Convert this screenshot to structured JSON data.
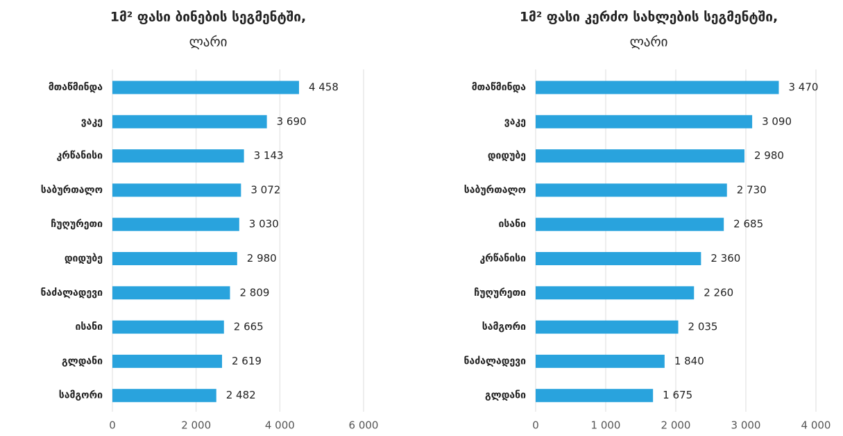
{
  "chart_data": [
    {
      "type": "bar",
      "orientation": "horizontal",
      "title": "1მ² ფასი ბინების სეგმენტში,",
      "subtitle": "ლარი",
      "categories": [
        "მთაწმინდა",
        "ვაკე",
        "კრწანისი",
        "საბურთალო",
        "ჩუღურეთი",
        "დიდუბე",
        "ნაძალადევი",
        "ისანი",
        "გლდანი",
        "სამგორი"
      ],
      "values": [
        4458,
        3690,
        3143,
        3072,
        3030,
        2980,
        2809,
        2665,
        2619,
        2482
      ],
      "value_labels": [
        "4 458",
        "3 690",
        "3 143",
        "3 072",
        "3 030",
        "2 980",
        "2 809",
        "2 665",
        "2 619",
        "2 482"
      ],
      "color": "#29a3dd",
      "xlim": [
        0,
        6000
      ],
      "xticks": [
        0,
        {
          "value": 2000,
          "label": "2 000"
        },
        {
          "value": 4000,
          "label": "4 000"
        },
        {
          "value": 6000,
          "label": "6 000"
        }
      ],
      "grid": true
    },
    {
      "type": "bar",
      "orientation": "horizontal",
      "title": "1მ² ფასი კერძო სახლების სეგმენტში,",
      "subtitle": "ლარი",
      "categories": [
        "მთაწმინდა",
        "ვაკე",
        "დიდუბე",
        "საბურთალო",
        "ისანი",
        "კრწანისი",
        "ჩუღურეთი",
        "სამგორი",
        "ნაძალადევი",
        "გლდანი"
      ],
      "values": [
        3470,
        3090,
        2980,
        2730,
        2685,
        2360,
        2260,
        2035,
        1840,
        1675
      ],
      "value_labels": [
        "3 470",
        "3 090",
        "2 980",
        "2 730",
        "2 685",
        "2 360",
        "2 260",
        "2 035",
        "1 840",
        "1 675"
      ],
      "color": "#29a3dd",
      "xlim": [
        0,
        4000
      ],
      "xticks": [
        0,
        {
          "value": 1000,
          "label": "1 000"
        },
        {
          "value": 2000,
          "label": "2 000"
        },
        {
          "value": 3000,
          "label": "3 000"
        },
        {
          "value": 4000,
          "label": "4 000"
        }
      ],
      "grid": true
    }
  ]
}
